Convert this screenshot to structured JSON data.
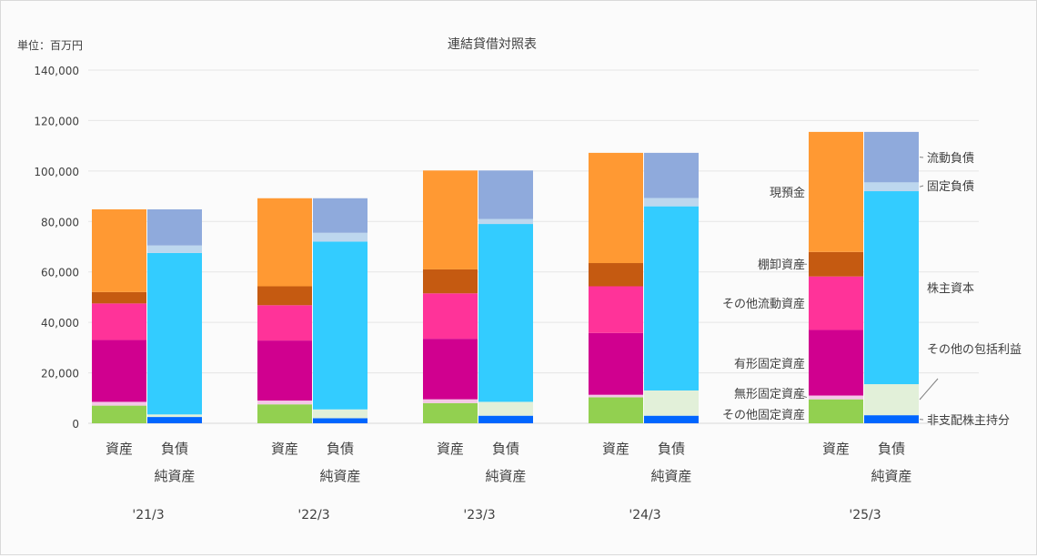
{
  "chart_data": {
    "type": "bar",
    "title": "連結貸借対照表",
    "unit_label": "単位：百万円",
    "ylim": [
      0,
      140000
    ],
    "y_ticks": [
      "0",
      "20,000",
      "40,000",
      "60,000",
      "80,000",
      "100,000",
      "120,000",
      "140,000"
    ],
    "grid": true,
    "years": [
      "'21/3",
      "'22/3",
      "'23/3",
      "'24/3",
      "'25/3"
    ],
    "bar_labels": {
      "asset": "資産",
      "liab_line1": "負債",
      "liab_line2": "純資産"
    },
    "asset_series": [
      {
        "key": "other_fixed",
        "name": "その他固定資産",
        "color": "#92d050",
        "values": [
          7000,
          7500,
          8000,
          10300,
          9500
        ]
      },
      {
        "key": "intangible",
        "name": "無形固定資産",
        "color": "#f4c7e7",
        "values": [
          1500,
          1500,
          1500,
          1000,
          1500
        ]
      },
      {
        "key": "tangible",
        "name": "有形固定資産",
        "color": "#d0008f",
        "values": [
          24500,
          23800,
          24000,
          24500,
          26000
        ]
      },
      {
        "key": "other_current",
        "name": "その他流動資産",
        "color": "#ff3399",
        "values": [
          14500,
          14000,
          18000,
          18500,
          21200
        ]
      },
      {
        "key": "inventory",
        "name": "棚卸資産",
        "color": "#c55a11",
        "values": [
          4500,
          7500,
          9500,
          9200,
          9700
        ]
      },
      {
        "key": "cash",
        "name": "現預金",
        "color": "#ff9933",
        "values": [
          32800,
          34900,
          39200,
          43700,
          47600
        ]
      }
    ],
    "liab_series": [
      {
        "key": "minority",
        "name": "非支配株主持分",
        "color": "#0066ff",
        "values": [
          2500,
          2000,
          3000,
          3000,
          3200
        ]
      },
      {
        "key": "aoci",
        "name": "その他の包括利益",
        "color": "#e2f0d9",
        "values": [
          1000,
          3500,
          5500,
          10000,
          12300
        ]
      },
      {
        "key": "equity",
        "name": "株主資本",
        "color": "#33ccff",
        "values": [
          64000,
          66500,
          70500,
          73000,
          76500
        ]
      },
      {
        "key": "fixed_liab",
        "name": "固定負債",
        "color": "#bdd7ee",
        "values": [
          3000,
          3500,
          2000,
          3300,
          3500
        ]
      },
      {
        "key": "current_liab",
        "name": "流動負債",
        "color": "#8faadc",
        "values": [
          14300,
          13700,
          19200,
          17900,
          20000
        ]
      }
    ]
  }
}
